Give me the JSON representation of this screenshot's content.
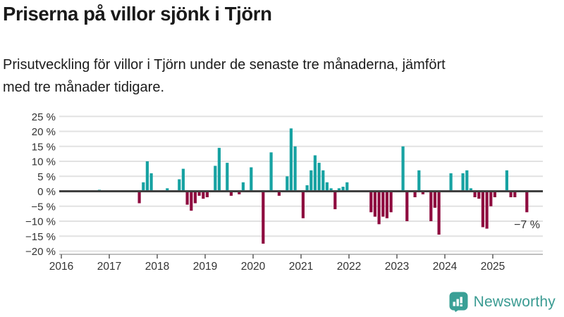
{
  "header": {
    "title": "Priserna på villor sjönk i Tjörn",
    "subtitle_lines": [
      "Prisutveckling för villor i Tjörn under de senaste tre månaderna, jämfört",
      "med tre månader tidigare."
    ]
  },
  "chart_data": {
    "type": "bar",
    "title": "Priserna på villor sjönk i Tjörn",
    "series_name": "Prisutveckling villor i Tjörn, senaste tre månaderna jämfört med tre månader tidigare",
    "unit": "%",
    "xlabel": "",
    "ylabel": "",
    "ylim": [
      -20,
      25
    ],
    "grid": true,
    "legend_position": "none",
    "y_ticks": [
      25,
      20,
      15,
      10,
      5,
      0,
      -5,
      -10,
      -15,
      -20
    ],
    "y_tick_labels": [
      "25 %",
      "20 %",
      "15 %",
      "10 %",
      "5 %",
      "0 %",
      "−5 %",
      "−10 %",
      "−15 %",
      "−20 %"
    ],
    "x_ticks": [
      2016,
      2017,
      2018,
      2019,
      2020,
      2021,
      2022,
      2023,
      2024,
      2025
    ],
    "points": [
      {
        "month": "2016-10",
        "value": 0.5
      },
      {
        "month": "2017-08",
        "value": -4
      },
      {
        "month": "2017-09",
        "value": 3
      },
      {
        "month": "2017-10",
        "value": 10
      },
      {
        "month": "2017-11",
        "value": 6
      },
      {
        "month": "2018-03",
        "value": 1
      },
      {
        "month": "2018-06",
        "value": 4
      },
      {
        "month": "2018-07",
        "value": 7.5
      },
      {
        "month": "2018-08",
        "value": -4.5
      },
      {
        "month": "2018-09",
        "value": -6.5
      },
      {
        "month": "2018-10",
        "value": -4
      },
      {
        "month": "2018-11",
        "value": -1.5
      },
      {
        "month": "2018-12",
        "value": -2.5
      },
      {
        "month": "2019-01",
        "value": -2
      },
      {
        "month": "2019-03",
        "value": 8.5
      },
      {
        "month": "2019-04",
        "value": 14.5
      },
      {
        "month": "2019-06",
        "value": 9.5
      },
      {
        "month": "2019-07",
        "value": -1.5
      },
      {
        "month": "2019-09",
        "value": -1
      },
      {
        "month": "2019-10",
        "value": 3
      },
      {
        "month": "2019-12",
        "value": 8
      },
      {
        "month": "2020-03",
        "value": -17.5
      },
      {
        "month": "2020-05",
        "value": 13
      },
      {
        "month": "2020-07",
        "value": -1.5
      },
      {
        "month": "2020-09",
        "value": 5
      },
      {
        "month": "2020-10",
        "value": 21
      },
      {
        "month": "2020-11",
        "value": 15
      },
      {
        "month": "2021-01",
        "value": -9
      },
      {
        "month": "2021-02",
        "value": 2
      },
      {
        "month": "2021-03",
        "value": 7
      },
      {
        "month": "2021-04",
        "value": 12
      },
      {
        "month": "2021-05",
        "value": 9.5
      },
      {
        "month": "2021-06",
        "value": 7
      },
      {
        "month": "2021-07",
        "value": 3
      },
      {
        "month": "2021-08",
        "value": 1
      },
      {
        "month": "2021-09",
        "value": -6
      },
      {
        "month": "2021-10",
        "value": 1
      },
      {
        "month": "2021-11",
        "value": 1.5
      },
      {
        "month": "2021-12",
        "value": 3
      },
      {
        "month": "2022-06",
        "value": -7
      },
      {
        "month": "2022-07",
        "value": -8.5
      },
      {
        "month": "2022-08",
        "value": -11
      },
      {
        "month": "2022-09",
        "value": -8.5
      },
      {
        "month": "2022-10",
        "value": -9
      },
      {
        "month": "2022-11",
        "value": -7
      },
      {
        "month": "2023-02",
        "value": 15
      },
      {
        "month": "2023-03",
        "value": -10
      },
      {
        "month": "2023-05",
        "value": -2
      },
      {
        "month": "2023-06",
        "value": 7
      },
      {
        "month": "2023-07",
        "value": -1
      },
      {
        "month": "2023-09",
        "value": -10
      },
      {
        "month": "2023-10",
        "value": -5.5
      },
      {
        "month": "2023-11",
        "value": -14.5
      },
      {
        "month": "2024-02",
        "value": 6
      },
      {
        "month": "2024-05",
        "value": 6
      },
      {
        "month": "2024-06",
        "value": 7
      },
      {
        "month": "2024-07",
        "value": 1
      },
      {
        "month": "2024-08",
        "value": -2
      },
      {
        "month": "2024-09",
        "value": -2.5
      },
      {
        "month": "2024-10",
        "value": -12
      },
      {
        "month": "2024-11",
        "value": -12.5
      },
      {
        "month": "2024-12",
        "value": -5
      },
      {
        "month": "2025-01",
        "value": -2
      },
      {
        "month": "2025-04",
        "value": 7
      },
      {
        "month": "2025-05",
        "value": -2
      },
      {
        "month": "2025-06",
        "value": -2
      },
      {
        "month": "2025-09",
        "value": -7
      }
    ],
    "annotation": {
      "text": "−7 %",
      "month": "2025-09",
      "value": -7
    },
    "colors": {
      "positive": "#17a2a2",
      "negative": "#8e0c3f",
      "zero_line": "#404040",
      "gridline": "#e2e2e2",
      "axis": "#aaaaaa",
      "tick": "#666666",
      "label": "#333333",
      "annotation": "#3a3a3a"
    }
  },
  "footer": {
    "brand": "Newsworthy",
    "logo_color": "#3a9b92"
  }
}
